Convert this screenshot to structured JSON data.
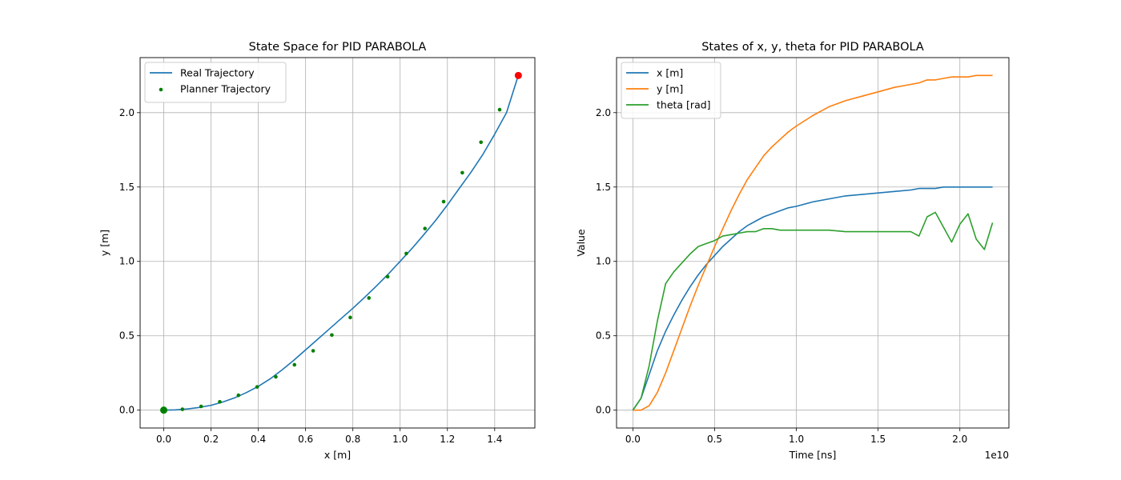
{
  "chart_data": [
    {
      "type": "line",
      "title": "State Space for PID PARABOLA",
      "xlabel": "x [m]",
      "ylabel": "y [m]",
      "xlim": [
        -0.1,
        1.57
      ],
      "ylim": [
        -0.12,
        2.37
      ],
      "xticks": [
        0.0,
        0.2,
        0.4,
        0.6,
        0.8,
        1.0,
        1.2,
        1.4
      ],
      "xtick_labels": [
        "0.0",
        "0.2",
        "0.4",
        "0.6",
        "0.8",
        "1.0",
        "1.2",
        "1.4"
      ],
      "yticks": [
        0.0,
        0.5,
        1.0,
        1.5,
        2.0
      ],
      "ytick_labels": [
        "0.0",
        "0.5",
        "1.0",
        "1.5",
        "2.0"
      ],
      "grid": true,
      "legend": "top-left",
      "series": [
        {
          "name": "Real Trajectory",
          "type": "line",
          "color": "#1f77b4",
          "x": [
            0.0,
            0.05,
            0.1,
            0.15,
            0.2,
            0.25,
            0.3,
            0.35,
            0.4,
            0.45,
            0.5,
            0.55,
            0.6,
            0.65,
            0.7,
            0.75,
            0.8,
            0.85,
            0.9,
            0.95,
            1.0,
            1.05,
            1.1,
            1.15,
            1.2,
            1.25,
            1.3,
            1.35,
            1.4,
            1.45,
            1.5
          ],
          "y": [
            0.0,
            0.002,
            0.008,
            0.018,
            0.033,
            0.055,
            0.083,
            0.118,
            0.16,
            0.21,
            0.27,
            0.335,
            0.405,
            0.475,
            0.545,
            0.615,
            0.685,
            0.758,
            0.835,
            0.915,
            1.0,
            1.087,
            1.18,
            1.275,
            1.38,
            1.49,
            1.6,
            1.72,
            1.855,
            2.0,
            2.25
          ]
        },
        {
          "name": "Planner Trajectory",
          "type": "scatter",
          "color": "#008000",
          "x": [
            0.0,
            0.079,
            0.158,
            0.237,
            0.316,
            0.395,
            0.474,
            0.553,
            0.632,
            0.711,
            0.789,
            0.868,
            0.947,
            1.026,
            1.105,
            1.184,
            1.263,
            1.342,
            1.421,
            1.5
          ],
          "y": [
            0.0,
            0.006,
            0.025,
            0.056,
            0.1,
            0.156,
            0.224,
            0.305,
            0.399,
            0.505,
            0.623,
            0.754,
            0.897,
            1.053,
            1.221,
            1.402,
            1.596,
            1.801,
            2.02,
            2.25
          ]
        }
      ],
      "markers": [
        {
          "x": 0.0,
          "y": 0.0,
          "color": "#008000"
        },
        {
          "x": 1.5,
          "y": 2.25,
          "color": "#ff0000"
        }
      ]
    },
    {
      "type": "line",
      "title": "States of x, y, theta for PID PARABOLA",
      "xlabel": "Time [ns]",
      "ylabel": "Value",
      "x_offset_label": "1e10",
      "xlim": [
        -0.1,
        2.3
      ],
      "ylim": [
        -0.12,
        2.37
      ],
      "xticks": [
        0.0,
        0.5,
        1.0,
        1.5,
        2.0
      ],
      "xtick_labels": [
        "0.0",
        "0.5",
        "1.0",
        "1.5",
        "2.0"
      ],
      "yticks": [
        0.0,
        0.5,
        1.0,
        1.5,
        2.0
      ],
      "ytick_labels": [
        "0.0",
        "0.5",
        "1.0",
        "1.5",
        "2.0"
      ],
      "grid": true,
      "legend": "top-left",
      "x": [
        0.0,
        0.05,
        0.1,
        0.15,
        0.2,
        0.25,
        0.3,
        0.35,
        0.4,
        0.45,
        0.5,
        0.55,
        0.6,
        0.65,
        0.7,
        0.75,
        0.8,
        0.85,
        0.9,
        0.95,
        1.0,
        1.1,
        1.2,
        1.3,
        1.4,
        1.5,
        1.6,
        1.7,
        1.75,
        1.8,
        1.85,
        1.9,
        1.95,
        2.0,
        2.05,
        2.1,
        2.15,
        2.2
      ],
      "series": [
        {
          "name": "x [m]",
          "color": "#1f77b4",
          "values": [
            0.0,
            0.08,
            0.24,
            0.4,
            0.53,
            0.64,
            0.74,
            0.83,
            0.91,
            0.98,
            1.04,
            1.1,
            1.15,
            1.2,
            1.24,
            1.27,
            1.3,
            1.32,
            1.34,
            1.36,
            1.37,
            1.4,
            1.42,
            1.44,
            1.45,
            1.46,
            1.47,
            1.48,
            1.49,
            1.49,
            1.49,
            1.5,
            1.5,
            1.5,
            1.5,
            1.5,
            1.5,
            1.5
          ]
        },
        {
          "name": "y [m]",
          "color": "#ff7f0e",
          "values": [
            0.0,
            0.0,
            0.03,
            0.12,
            0.25,
            0.4,
            0.55,
            0.7,
            0.84,
            0.97,
            1.1,
            1.22,
            1.34,
            1.45,
            1.55,
            1.63,
            1.71,
            1.77,
            1.82,
            1.87,
            1.91,
            1.98,
            2.04,
            2.08,
            2.11,
            2.14,
            2.17,
            2.19,
            2.2,
            2.22,
            2.22,
            2.23,
            2.24,
            2.24,
            2.24,
            2.25,
            2.25,
            2.25
          ]
        },
        {
          "name": "theta [rad]",
          "color": "#2ca02c",
          "values": [
            0.0,
            0.08,
            0.3,
            0.6,
            0.85,
            0.93,
            0.99,
            1.05,
            1.1,
            1.12,
            1.14,
            1.17,
            1.18,
            1.19,
            1.2,
            1.2,
            1.22,
            1.22,
            1.21,
            1.21,
            1.21,
            1.21,
            1.21,
            1.2,
            1.2,
            1.2,
            1.2,
            1.2,
            1.17,
            1.3,
            1.33,
            1.23,
            1.13,
            1.25,
            1.32,
            1.15,
            1.08,
            1.26
          ]
        }
      ]
    }
  ]
}
